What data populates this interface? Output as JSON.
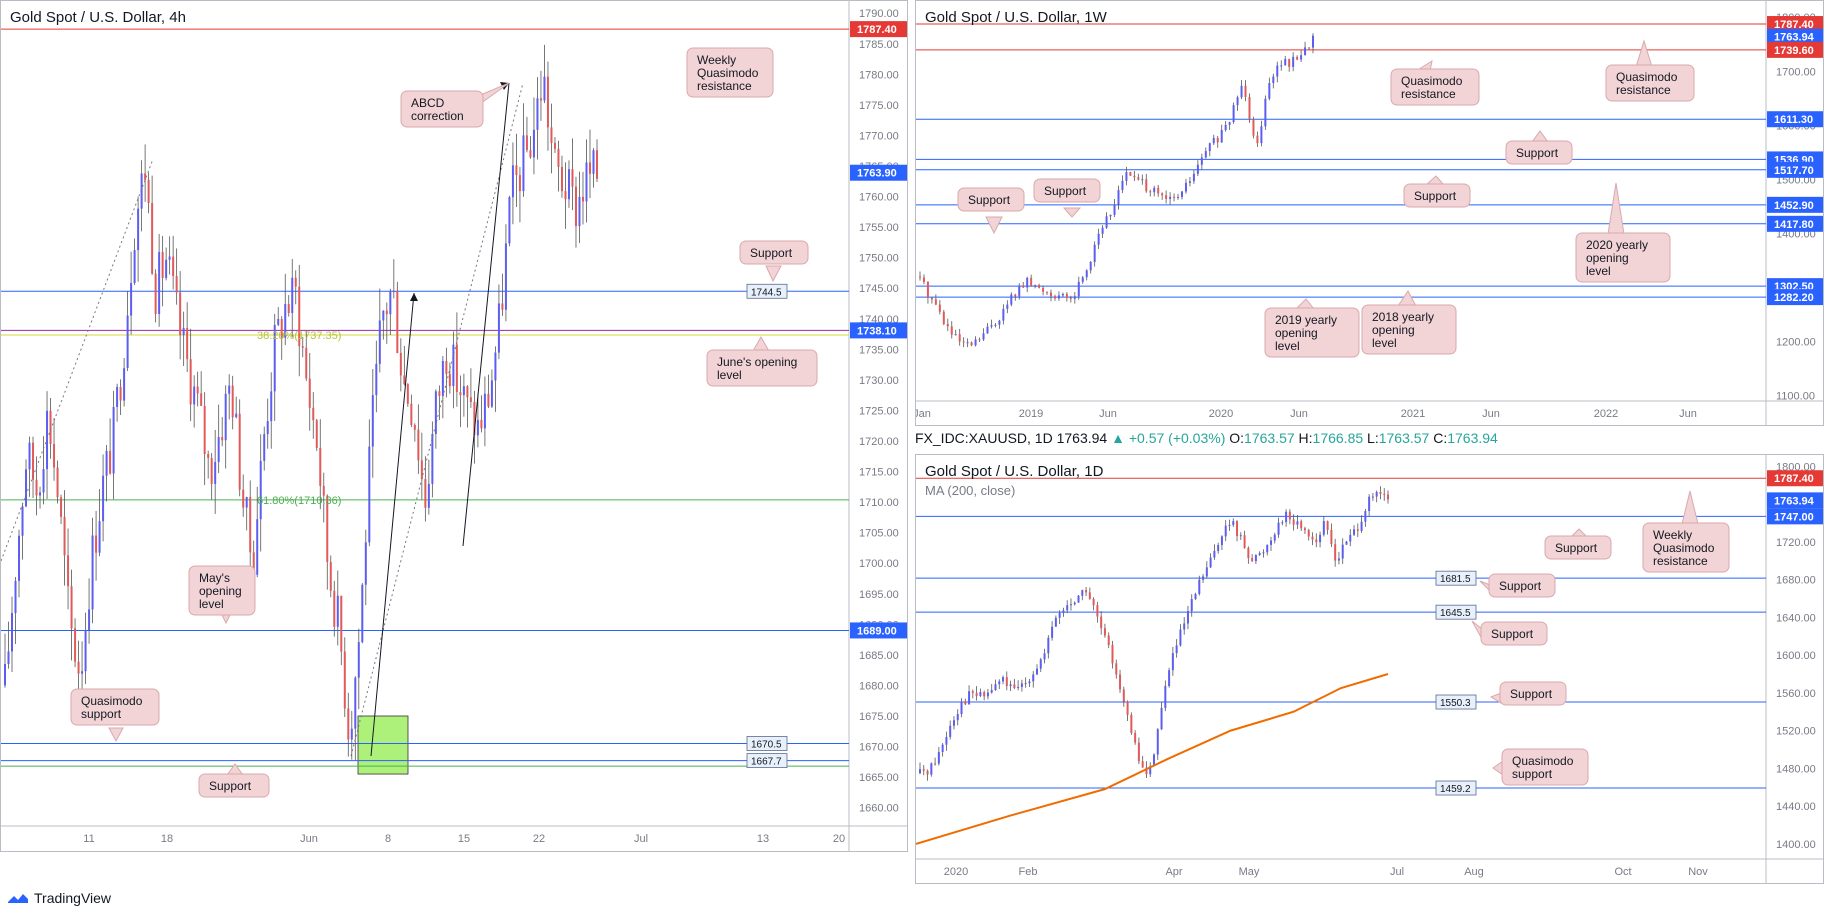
{
  "panels": {
    "h4": {
      "title": "Gold Spot / U.S. Dollar, 4h",
      "y_ticks": [
        "1790.00",
        "1785.00",
        "1780.00",
        "1775.00",
        "1770.00",
        "1765.00",
        "1760.00",
        "1755.00",
        "1750.00",
        "1745.00",
        "1740.00",
        "1735.00",
        "1730.00",
        "1725.00",
        "1720.00",
        "1715.00",
        "1710.00",
        "1705.00",
        "1700.00",
        "1695.00",
        "1690.00",
        "1685.00",
        "1680.00",
        "1675.00",
        "1670.00",
        "1665.00",
        "1660.00"
      ],
      "x_ticks": [
        "11",
        "18",
        "Jun",
        "8",
        "15",
        "22",
        "Jul",
        "13",
        "20"
      ],
      "price_tags": [
        {
          "label": "1787.40",
          "color": "#e53935"
        },
        {
          "label": "1763.90",
          "color": "#2962ff"
        },
        {
          "label": "1738.10",
          "color": "#2962ff"
        },
        {
          "label": "1689.00",
          "color": "#2962ff"
        }
      ],
      "level_labels": [
        "1744.5",
        "1670.5",
        "1667.7"
      ],
      "fib_labels": [
        "38.20%(1737.35)",
        "61.80%(1710.36)"
      ],
      "callouts": {
        "weekly_qm": [
          "Weekly",
          "Quasimodo",
          "resistance"
        ],
        "abcd": [
          "ABCD",
          "correction"
        ],
        "support_top": [
          "Support"
        ],
        "june_opening": [
          "June's opening",
          "level"
        ],
        "may_opening": [
          "May's",
          "opening",
          "level"
        ],
        "qm_support": [
          "Quasimodo",
          "support"
        ],
        "support_bottom": [
          "Support"
        ]
      }
    },
    "w1": {
      "title": "Gold Spot / U.S. Dollar, 1W",
      "y_ticks": [
        "1800.00",
        "1700.00",
        "1600.00",
        "1500.00",
        "1400.00",
        "1300.00",
        "1200.00",
        "1100.00"
      ],
      "x_ticks": [
        "Jan",
        "2019",
        "Jun",
        "2020",
        "Jun",
        "2021",
        "Jun",
        "2022",
        "Jun"
      ],
      "price_tags": [
        {
          "label": "1787.40",
          "color": "#e53935"
        },
        {
          "label": "1763.94",
          "color": "#2962ff"
        },
        {
          "label": "1739.60",
          "color": "#e53935"
        },
        {
          "label": "1611.30",
          "color": "#2962ff"
        },
        {
          "label": "1536.90",
          "color": "#2962ff"
        },
        {
          "label": "1517.70",
          "color": "#2962ff"
        },
        {
          "label": "1452.90",
          "color": "#2962ff"
        },
        {
          "label": "1417.80",
          "color": "#2962ff"
        },
        {
          "label": "1302.50",
          "color": "#2962ff"
        },
        {
          "label": "1282.20",
          "color": "#2962ff"
        }
      ],
      "callouts": {
        "qm_res_1": [
          "Quasimodo",
          "resistance"
        ],
        "qm_res_2": [
          "Quasimodo",
          "resistance"
        ],
        "support_1": [
          "Support"
        ],
        "support_2": [
          "Support"
        ],
        "support_3": [
          "Support"
        ],
        "support_4": [
          "Support"
        ],
        "y2020": [
          "2020 yearly",
          "opening",
          "level"
        ],
        "y2019": [
          "2019 yearly",
          "opening",
          "level"
        ],
        "y2018": [
          "2018 yearly",
          "opening",
          "level"
        ]
      }
    },
    "d1": {
      "header": {
        "symbol": "FX_IDC:XAUUSD, 1D",
        "last": "1763.94",
        "change": "▲ +0.57 (+0.03%)",
        "o_label": "O:",
        "o": "1763.57",
        "h_label": "H:",
        "h": "1766.85",
        "l_label": "L:",
        "l": "1763.57",
        "c_label": "C:",
        "c": "1763.94"
      },
      "title": "Gold Spot / U.S. Dollar, 1D",
      "ma_label": "MA (200, close)",
      "y_ticks": [
        "1800.00",
        "1760.00",
        "1720.00",
        "1680.00",
        "1640.00",
        "1600.00",
        "1560.00",
        "1520.00",
        "1480.00",
        "1440.00",
        "1400.00"
      ],
      "x_ticks": [
        "2020",
        "Feb",
        "Apr",
        "May",
        "Jul",
        "Aug",
        "Oct",
        "Nov"
      ],
      "price_tags": [
        {
          "label": "1787.40",
          "color": "#e53935"
        },
        {
          "label": "1763.94",
          "color": "#2962ff"
        },
        {
          "label": "1747.00",
          "color": "#2962ff"
        }
      ],
      "level_labels": [
        "1681.5",
        "1645.5",
        "1550.3",
        "1459.2"
      ],
      "callouts": {
        "support_1": [
          "Support"
        ],
        "weekly_qm": [
          "Weekly",
          "Quasimodo",
          "resistance"
        ],
        "support_2": [
          "Support"
        ],
        "support_3": [
          "Support"
        ],
        "support_4": [
          "Support"
        ],
        "qm_support": [
          "Quasimodo",
          "support"
        ]
      }
    }
  },
  "footer": {
    "brand": "TradingView"
  },
  "chart_data": [
    {
      "type": "candlestick",
      "title": "Gold Spot / U.S. Dollar, 4h",
      "ylim": [
        1657,
        1792
      ],
      "horizontal_levels": [
        {
          "value": 1787.4,
          "label": "Weekly Quasimodo resistance",
          "color": "#e53935"
        },
        {
          "value": 1744.5,
          "label": "Support",
          "color": "#2962ff"
        },
        {
          "value": 1738.1,
          "label": "June's opening level",
          "color": "#9c27b0"
        },
        {
          "value": 1737.35,
          "label": "38.20% Fibonacci",
          "color": "#cddc39"
        },
        {
          "value": 1710.36,
          "label": "61.80% Fibonacci",
          "color": "#4caf50"
        },
        {
          "value": 1689.0,
          "label": "May's opening level",
          "color": "#2962ff"
        },
        {
          "value": 1670.5,
          "label": "Quasimodo support",
          "color": "#2962ff"
        },
        {
          "value": 1667.7,
          "label": "Support",
          "color": "#2962ff"
        },
        {
          "value": 1666.8,
          "label": "Support",
          "color": "#4caf50"
        }
      ],
      "last_price": 1763.9,
      "price_path": [
        1680,
        1700,
        1718,
        1712,
        1725,
        1710,
        1690,
        1682,
        1700,
        1712,
        1720,
        1735,
        1755,
        1765,
        1745,
        1750,
        1740,
        1732,
        1725,
        1715,
        1722,
        1730,
        1712,
        1700,
        1720,
        1735,
        1742,
        1744,
        1730,
        1720,
        1700,
        1690,
        1672,
        1690,
        1720,
        1740,
        1745,
        1730,
        1725,
        1710,
        1725,
        1735,
        1730,
        1725,
        1722,
        1728,
        1740,
        1760,
        1765,
        1770,
        1780,
        1765,
        1762,
        1758,
        1763,
        1763.9
      ]
    },
    {
      "type": "candlestick",
      "title": "Gold Spot / U.S. Dollar, 1W",
      "ylim": [
        1090,
        1830
      ],
      "horizontal_levels": [
        {
          "value": 1787.4,
          "label": "Quasimodo resistance",
          "color": "#e53935"
        },
        {
          "value": 1739.6,
          "label": "Quasimodo resistance",
          "color": "#e53935"
        },
        {
          "value": 1611.3,
          "label": "Support",
          "color": "#2962ff"
        },
        {
          "value": 1536.9,
          "label": "Support",
          "color": "#2962ff"
        },
        {
          "value": 1517.7,
          "label": "2020 yearly opening level",
          "color": "#2962ff"
        },
        {
          "value": 1452.9,
          "label": "Support",
          "color": "#2962ff"
        },
        {
          "value": 1417.8,
          "label": "Support",
          "color": "#2962ff"
        },
        {
          "value": 1302.5,
          "label": "2019 yearly opening level",
          "color": "#2962ff"
        },
        {
          "value": 1282.2,
          "label": "2018 yearly opening level",
          "color": "#2962ff"
        }
      ],
      "last_price": 1763.94,
      "price_path": [
        1320,
        1290,
        1270,
        1240,
        1215,
        1200,
        1190,
        1195,
        1210,
        1225,
        1240,
        1260,
        1285,
        1300,
        1310,
        1300,
        1295,
        1290,
        1285,
        1275,
        1285,
        1320,
        1345,
        1400,
        1420,
        1440,
        1500,
        1510,
        1500,
        1490,
        1480,
        1470,
        1460,
        1465,
        1475,
        1500,
        1520,
        1550,
        1570,
        1580,
        1600,
        1650,
        1680,
        1600,
        1560,
        1680,
        1700,
        1720,
        1710,
        1730,
        1740,
        1764
      ]
    },
    {
      "type": "candlestick",
      "title": "Gold Spot / U.S. Dollar, 1D",
      "ylim": [
        1384,
        1812
      ],
      "ma": {
        "name": "MA (200, close)",
        "color": "#ef6c00",
        "points": [
          [
            0,
            1400
          ],
          [
            60,
            1430
          ],
          [
            120,
            1458
          ],
          [
            160,
            1490
          ],
          [
            200,
            1520
          ],
          [
            240,
            1540
          ],
          [
            270,
            1565
          ],
          [
            300,
            1580
          ]
        ]
      },
      "horizontal_levels": [
        {
          "value": 1787.4,
          "label": "Weekly Quasimodo resistance",
          "color": "#e53935"
        },
        {
          "value": 1747.0,
          "label": "Support",
          "color": "#2962ff"
        },
        {
          "value": 1681.5,
          "label": "Support",
          "color": "#2962ff"
        },
        {
          "value": 1645.5,
          "label": "Support",
          "color": "#2962ff"
        },
        {
          "value": 1550.3,
          "label": "Support",
          "color": "#2962ff"
        },
        {
          "value": 1459.2,
          "label": "Quasimodo support",
          "color": "#2962ff"
        }
      ],
      "last_price": 1763.94,
      "price_path": [
        1475,
        1480,
        1500,
        1530,
        1550,
        1560,
        1555,
        1565,
        1575,
        1560,
        1570,
        1585,
        1600,
        1640,
        1650,
        1660,
        1670,
        1640,
        1610,
        1580,
        1530,
        1490,
        1470,
        1530,
        1590,
        1620,
        1650,
        1680,
        1700,
        1730,
        1740,
        1720,
        1700,
        1710,
        1730,
        1750,
        1740,
        1735,
        1720,
        1740,
        1700,
        1720,
        1735,
        1760,
        1770,
        1764
      ]
    }
  ]
}
